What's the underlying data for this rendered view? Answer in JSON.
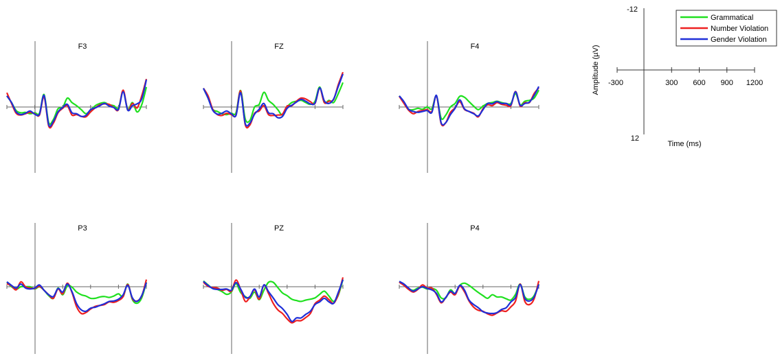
{
  "chart_data": {
    "type": "line",
    "x_unit": "ms",
    "y_unit": "µV",
    "xlim": [
      -300,
      1200
    ],
    "ylim": [
      -12,
      12
    ],
    "y_inverted": true,
    "grid": false,
    "legend_position": "top-right",
    "series_styles": [
      {
        "name": "Grammatical",
        "color": "#1fe01f"
      },
      {
        "name": "Number Violation",
        "color": "#ee2020"
      },
      {
        "name": "Gender Violation",
        "color": "#1f2fd8"
      }
    ],
    "scale_reference": {
      "x_ticks": [
        -300,
        300,
        600,
        900,
        1200
      ],
      "x_tick_labels": [
        "-300",
        "300",
        "600",
        "900",
        "1200"
      ],
      "y_top_label": "-12",
      "y_bottom_label": "12",
      "xlabel": "Time (ms)",
      "ylabel": "Amplitude (µV)"
    },
    "panels": [
      {
        "title": "F3",
        "x": [
          -300,
          -250,
          -200,
          -150,
          -100,
          -50,
          0,
          50,
          100,
          150,
          200,
          250,
          300,
          350,
          400,
          450,
          500,
          550,
          600,
          650,
          700,
          750,
          800,
          850,
          900,
          950,
          1000,
          1050,
          1100,
          1150,
          1200
        ],
        "series": [
          {
            "name": "Grammatical",
            "values": [
              -2.5,
              -1,
              0.8,
              1.3,
              1.2,
              1.5,
              1.3,
              1.4,
              -2.8,
              3.5,
              2.8,
              0.4,
              0.1,
              -2.0,
              -1.0,
              -0.3,
              0.6,
              1.5,
              0.7,
              -0.3,
              -0.8,
              -1.0,
              -0.5,
              -0.3,
              0.2,
              -3.5,
              0.5,
              -1.0,
              1.1,
              -0.5,
              -4.5
            ]
          },
          {
            "name": "Number Violation",
            "values": [
              -3.2,
              -0.8,
              1.4,
              1.8,
              1.5,
              1.2,
              1.5,
              1.8,
              -2.3,
              4.3,
              3.6,
              1.3,
              0.3,
              -0.3,
              1.8,
              1.7,
              2.1,
              2.2,
              1.1,
              0.2,
              -0.5,
              -0.7,
              -0.6,
              0.1,
              0.6,
              -3.8,
              0.7,
              -0.8,
              0.2,
              -2.5,
              -6.3
            ]
          },
          {
            "name": "Gender Violation",
            "values": [
              -2.5,
              -1,
              1.1,
              1.7,
              1.4,
              0.9,
              1.6,
              1.6,
              -2.6,
              4.0,
              3.2,
              1.1,
              0.1,
              -0.6,
              1.3,
              1.5,
              2.1,
              1.9,
              0.6,
              0.2,
              -0.3,
              -0.8,
              -0.2,
              0.1,
              0.5,
              -3.4,
              0.7,
              -0.3,
              -0.7,
              -1.8,
              -6.1
            ]
          }
        ]
      },
      {
        "title": "FZ",
        "x": [
          -300,
          -250,
          -200,
          -150,
          -100,
          -50,
          0,
          50,
          100,
          150,
          200,
          250,
          300,
          350,
          400,
          450,
          500,
          550,
          600,
          650,
          700,
          750,
          800,
          850,
          900,
          950,
          1000,
          1050,
          1100,
          1150,
          1200
        ],
        "series": [
          {
            "name": "Grammatical",
            "values": [
              -4.2,
              -2.0,
              0.5,
              1.0,
              1.5,
              1.7,
              1.4,
              1.3,
              -3.7,
              2.7,
              3.0,
              0.0,
              -0.6,
              -3.3,
              -1.5,
              -0.6,
              0.6,
              1.8,
              0.0,
              -1.0,
              -1.3,
              -1.5,
              -1.0,
              -0.6,
              -1.3,
              -4.5,
              -1.0,
              -1.5,
              -1.0,
              -3.0,
              -5.5
            ]
          },
          {
            "name": "Number Violation",
            "values": [
              -4.2,
              -2.5,
              0.5,
              1.7,
              1.9,
              1.4,
              1.7,
              1.8,
              -3.6,
              4.0,
              4.0,
              1.4,
              0.9,
              -0.3,
              1.7,
              1.9,
              1.8,
              1.6,
              -0.2,
              -0.3,
              -1.3,
              -2.0,
              -1.8,
              -1.2,
              -0.8,
              -4.2,
              -1.0,
              -1.3,
              -1.7,
              -5.0,
              -7.8
            ]
          },
          {
            "name": "Gender Violation",
            "values": [
              -4.2,
              -2.0,
              0.7,
              1.6,
              1.4,
              0.9,
              1.5,
              1.9,
              -3.2,
              3.7,
              3.6,
              1.6,
              0.5,
              -0.8,
              1.3,
              1.5,
              2.4,
              2.1,
              0.3,
              -0.4,
              -1.1,
              -1.7,
              -1.3,
              -0.7,
              -0.9,
              -4.3,
              -1.4,
              -0.8,
              -1.8,
              -4.6,
              -7.4
            ]
          }
        ]
      },
      {
        "title": "F4",
        "x": [
          -300,
          -250,
          -200,
          -150,
          -100,
          -50,
          0,
          50,
          100,
          150,
          200,
          250,
          300,
          350,
          400,
          450,
          500,
          550,
          600,
          650,
          700,
          750,
          800,
          850,
          900,
          950,
          1000,
          1050,
          1100,
          1150,
          1200
        ],
        "series": [
          {
            "name": "Grammatical",
            "values": [
              -2.5,
              -1.0,
              0.5,
              0.6,
              0.3,
              0.5,
              0.0,
              0.4,
              -2.5,
              2.5,
              1.8,
              0.0,
              -0.8,
              -2.4,
              -2.2,
              -1.2,
              -0.2,
              0.6,
              -0.2,
              -0.8,
              -1.0,
              -1.3,
              -1.0,
              -0.8,
              -0.8,
              -3.0,
              -0.5,
              -1.3,
              -1.5,
              -2.0,
              -3.8
            ]
          },
          {
            "name": "Number Violation",
            "values": [
              -2.4,
              -0.8,
              0.7,
              1.5,
              1.0,
              0.8,
              0.6,
              1.0,
              -2.5,
              3.7,
              3.5,
              1.2,
              0.2,
              -1.2,
              0.5,
              1.0,
              1.4,
              2.2,
              0.4,
              -0.5,
              -0.3,
              -1.0,
              -0.6,
              -0.4,
              -0.3,
              -3.5,
              -0.2,
              -1.0,
              -1.0,
              -3.0,
              -4.3
            ]
          },
          {
            "name": "Gender Violation",
            "values": [
              -2.5,
              -1.2,
              0.5,
              1.0,
              1.2,
              1.0,
              0.8,
              1.2,
              -2.6,
              3.5,
              3.5,
              1.7,
              0.3,
              -1.6,
              0.4,
              1.0,
              1.5,
              2.0,
              0.6,
              -0.8,
              -0.7,
              -1.2,
              -0.8,
              -0.8,
              -0.5,
              -3.4,
              -0.4,
              -0.8,
              -1.1,
              -2.6,
              -4.6
            ]
          }
        ]
      },
      {
        "title": "P3",
        "x": [
          -300,
          -250,
          -200,
          -150,
          -100,
          -50,
          0,
          50,
          100,
          150,
          200,
          250,
          300,
          350,
          400,
          450,
          500,
          550,
          600,
          650,
          700,
          750,
          800,
          850,
          900,
          950,
          1000,
          1050,
          1100,
          1150,
          1200
        ],
        "series": [
          {
            "name": "Grammatical",
            "values": [
              -1.0,
              0.0,
              0.6,
              0.0,
              0.0,
              0.0,
              0.5,
              0.0,
              0.8,
              2.0,
              2.6,
              0.3,
              1.8,
              -0.2,
              0.1,
              1.2,
              1.8,
              2.1,
              2.6,
              2.6,
              2.3,
              2.2,
              2.4,
              2.1,
              1.6,
              2.2,
              -0.6,
              2.9,
              3.7,
              2.5,
              -1.0
            ]
          },
          {
            "name": "Number Violation",
            "values": [
              -0.7,
              -0.2,
              0.7,
              -1.1,
              0.0,
              0.3,
              0.4,
              -0.1,
              0.8,
              1.8,
              2.6,
              0.5,
              1.6,
              -0.8,
              1.3,
              4.5,
              6.0,
              5.8,
              5.0,
              4.4,
              4.2,
              4.0,
              3.4,
              3.5,
              3.1,
              2.2,
              -0.5,
              2.7,
              3.2,
              2.1,
              -1.6
            ]
          },
          {
            "name": "Gender Violation",
            "values": [
              -1.1,
              -0.3,
              0.3,
              -0.6,
              0.3,
              0.5,
              0.3,
              -0.4,
              0.8,
              1.8,
              2.2,
              0.4,
              1.2,
              -0.6,
              1.1,
              3.8,
              5.2,
              5.5,
              4.8,
              4.6,
              4.2,
              3.8,
              3.3,
              3.2,
              2.8,
              1.8,
              -0.3,
              2.5,
              3.3,
              2.0,
              -0.9
            ]
          }
        ]
      },
      {
        "title": "PZ",
        "x": [
          -300,
          -250,
          -200,
          -150,
          -100,
          -50,
          0,
          50,
          100,
          150,
          200,
          250,
          300,
          350,
          400,
          450,
          500,
          550,
          600,
          650,
          700,
          750,
          800,
          850,
          900,
          950,
          1000,
          1050,
          1100,
          1150,
          1200
        ],
        "series": [
          {
            "name": "Grammatical",
            "values": [
              -1.3,
              -0.4,
              0.4,
              0.6,
              1.1,
              1.7,
              1.2,
              -0.7,
              1.3,
              2.2,
              2.6,
              1.2,
              2.9,
              0.8,
              -1.0,
              -1.0,
              0.2,
              1.4,
              2.0,
              2.8,
              3.1,
              3.3,
              3.0,
              2.8,
              2.5,
              1.7,
              1.0,
              2.1,
              3.3,
              1.9,
              -1.6
            ]
          },
          {
            "name": "Number Violation",
            "values": [
              -1.0,
              -0.1,
              0.2,
              0.3,
              0.8,
              0.6,
              1.0,
              -1.5,
              0.6,
              3.3,
              2.3,
              0.7,
              2.8,
              -0.4,
              1.5,
              3.7,
              5.2,
              6.0,
              7.2,
              8.1,
              7.6,
              7.6,
              6.9,
              6.0,
              3.8,
              3.0,
              2.1,
              2.9,
              3.7,
              1.7,
              -2.1
            ]
          },
          {
            "name": "Gender Violation",
            "values": [
              -1.2,
              -0.3,
              0.4,
              0.6,
              0.6,
              0.5,
              0.8,
              -0.9,
              0.5,
              2.4,
              2.2,
              0.5,
              2.3,
              -0.4,
              1.1,
              2.5,
              4.0,
              4.9,
              6.2,
              7.8,
              7.0,
              7.0,
              6.2,
              5.5,
              4.0,
              3.4,
              2.6,
              3.4,
              3.7,
              1.3,
              -1.6
            ]
          }
        ]
      },
      {
        "title": "P4",
        "x": [
          -300,
          -250,
          -200,
          -150,
          -100,
          -50,
          0,
          50,
          100,
          150,
          200,
          250,
          300,
          350,
          400,
          450,
          500,
          550,
          600,
          650,
          700,
          750,
          800,
          850,
          900,
          950,
          1000,
          1050,
          1100,
          1150,
          1200
        ],
        "series": [
          {
            "name": "Grammatical",
            "values": [
              -1.1,
              -0.6,
              0.4,
              0.8,
              0.3,
              0.1,
              0.5,
              0.4,
              0.8,
              2.5,
              2.5,
              0.7,
              1.5,
              -0.3,
              -0.8,
              -0.3,
              0.5,
              1.3,
              2.0,
              2.6,
              1.8,
              2.3,
              2.3,
              2.7,
              3.0,
              1.7,
              -0.6,
              2.3,
              2.8,
              2.0,
              -0.6
            ]
          },
          {
            "name": "Number Violation",
            "values": [
              -1.0,
              -0.3,
              0.6,
              1.2,
              0.6,
              -0.4,
              0.3,
              0.3,
              1.7,
              3.6,
              2.4,
              1.2,
              1.8,
              -0.1,
              1.1,
              3.2,
              4.6,
              5.3,
              5.5,
              6.1,
              6.4,
              5.9,
              5.4,
              5.5,
              4.5,
              3.2,
              -0.6,
              3.3,
              4.0,
              2.7,
              -1.3
            ]
          },
          {
            "name": "Gender Violation",
            "values": [
              -1.2,
              -0.6,
              0.3,
              1.0,
              0.5,
              0.0,
              0.4,
              0.7,
              1.5,
              3.4,
              2.4,
              1.0,
              1.5,
              -0.3,
              0.7,
              3.0,
              4.0,
              4.7,
              5.6,
              5.9,
              6.0,
              5.8,
              5.1,
              4.7,
              3.4,
              2.4,
              -0.5,
              2.6,
              3.2,
              2.3,
              -0.5
            ]
          }
        ]
      }
    ]
  }
}
